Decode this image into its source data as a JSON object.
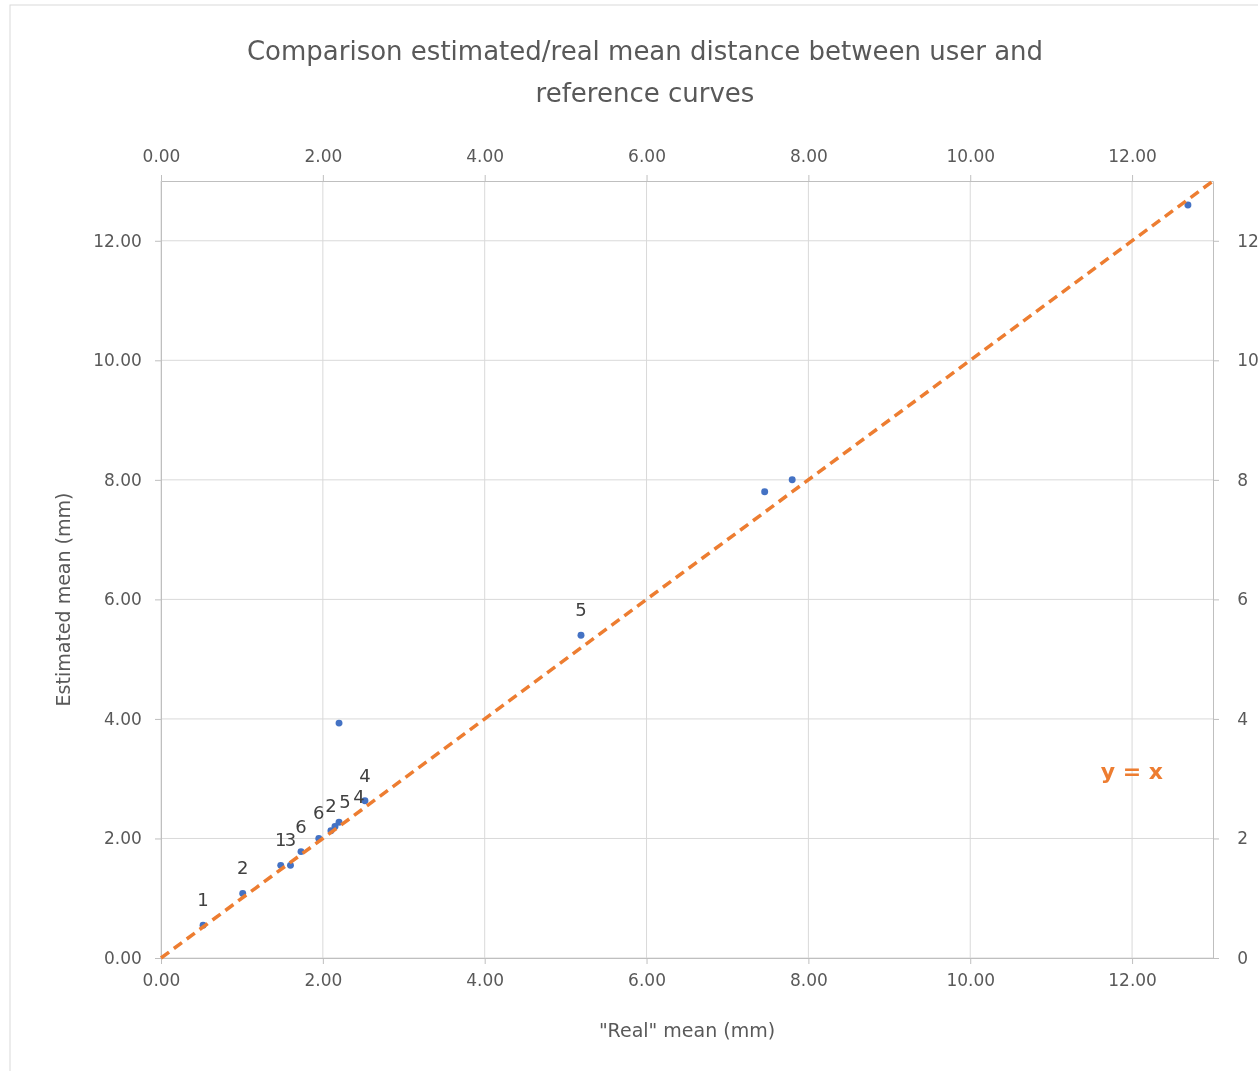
{
  "chart_data": {
    "type": "scatter",
    "title": "Comparison estimated/real mean  distance between user and reference curves",
    "xlabel": "\"Real\" mean (mm)",
    "ylabel": "Estimated mean (mm)",
    "xlim": [
      0,
      13
    ],
    "ylim": [
      0,
      13
    ],
    "xticks": [
      {
        "value": 0,
        "label": "0.00"
      },
      {
        "value": 2,
        "label": "2.00"
      },
      {
        "value": 4,
        "label": "4.00"
      },
      {
        "value": 6,
        "label": "6.00"
      },
      {
        "value": 8,
        "label": "8.00"
      },
      {
        "value": 10,
        "label": "10.00"
      },
      {
        "value": 12,
        "label": "12.00"
      }
    ],
    "yticks": [
      {
        "value": 0,
        "label": "0.00"
      },
      {
        "value": 2,
        "label": "2.00"
      },
      {
        "value": 4,
        "label": "4.00"
      },
      {
        "value": 6,
        "label": "6.00"
      },
      {
        "value": 8,
        "label": "8.00"
      },
      {
        "value": 10,
        "label": "10.00"
      },
      {
        "value": 12,
        "label": "12.00"
      }
    ],
    "x2lim": [
      0,
      13
    ],
    "x2ticks": [
      {
        "value": 0,
        "label": "0.00"
      },
      {
        "value": 2,
        "label": "2.00"
      },
      {
        "value": 4,
        "label": "4.00"
      },
      {
        "value": 6,
        "label": "6.00"
      },
      {
        "value": 8,
        "label": "8.00"
      },
      {
        "value": 10,
        "label": "10.00"
      },
      {
        "value": 12,
        "label": "12.00"
      }
    ],
    "y2lim": [
      0,
      13
    ],
    "y2ticks": [
      0,
      2,
      4,
      6,
      8,
      10,
      12
    ],
    "grid": true,
    "marker": "circle",
    "annotations": [
      {
        "text": "1",
        "x": 0.52,
        "y": 0.55
      },
      {
        "text": "2",
        "x": 1.01,
        "y": 1.08
      },
      {
        "text": "1",
        "x": 1.48,
        "y": 1.55
      },
      {
        "text": "3",
        "x": 1.6,
        "y": 1.55
      },
      {
        "text": "6",
        "x": 1.73,
        "y": 1.78
      },
      {
        "text": "6",
        "x": 1.95,
        "y": 2.0
      },
      {
        "text": "2",
        "x": 2.1,
        "y": 2.13
      },
      {
        "text": "5",
        "x": 2.15,
        "y": 2.2
      },
      {
        "text": "4",
        "x": 2.2,
        "y": 2.27
      },
      {
        "text": "4",
        "x": 2.52,
        "y": 2.63
      },
      {
        "text": "5",
        "x": 5.19,
        "y": 5.4
      }
    ],
    "series": [
      {
        "color": "#4472c4",
        "x": [
          0.52,
          1.01,
          1.48,
          1.6,
          1.73,
          1.95,
          2.1,
          2.15,
          2.2,
          2.52,
          2.2,
          5.19,
          7.46,
          7.8,
          12.69
        ],
        "values": [
          0.55,
          1.08,
          1.55,
          1.55,
          1.78,
          2.0,
          2.13,
          2.2,
          2.27,
          2.63,
          3.93,
          5.4,
          7.8,
          8.0,
          12.6
        ]
      },
      {
        "type": "line",
        "name": "y = x",
        "color": "#ed7d31",
        "line_style": "dashed",
        "marker": "none",
        "x": [
          0,
          13
        ],
        "values": [
          0,
          13
        ]
      }
    ]
  }
}
